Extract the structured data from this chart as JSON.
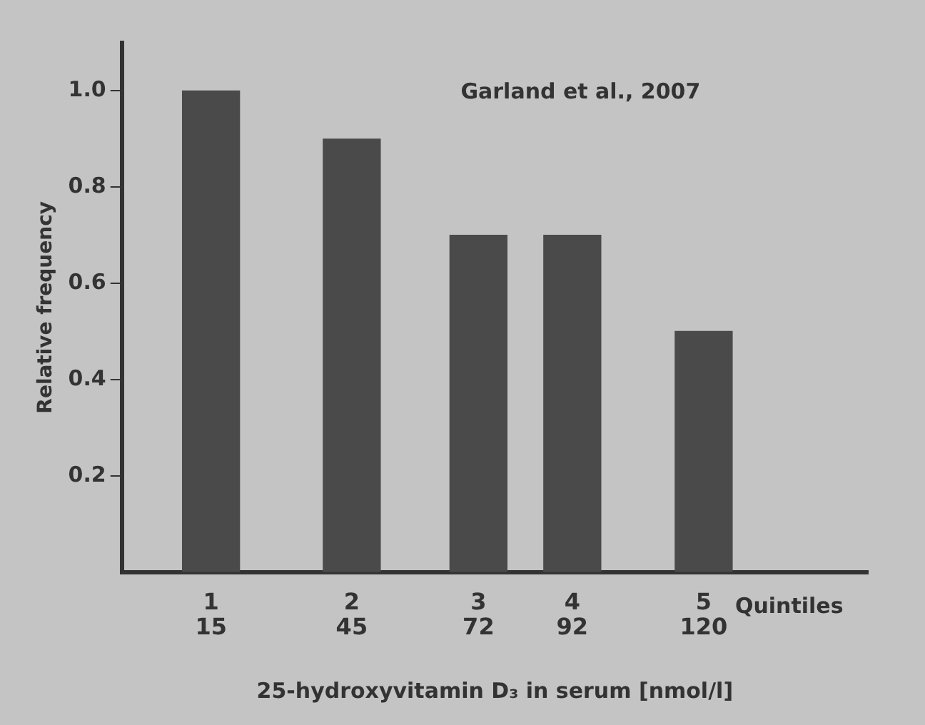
{
  "chart_data": {
    "type": "bar",
    "xlabel": "25-hydroxyvitamin D₃ in serum [nmol/l]",
    "ylabel": "Relative frequency",
    "annotations": [
      "Garland et al., 2007",
      "Quintiles",
      "1",
      "2",
      "3",
      "4",
      "5"
    ],
    "x": [
      15,
      45,
      72,
      92,
      120
    ],
    "values": [
      1.0,
      0.9,
      0.7,
      0.7,
      0.5
    ],
    "color": "#4a4a4a",
    "xlim": [
      -4,
      155
    ],
    "xticks": [
      15,
      45,
      72,
      92,
      120
    ],
    "ylim": [
      0,
      1.1
    ],
    "yticks": [
      {
        "value": 0.2,
        "label": "0.2"
      },
      {
        "value": 0.4,
        "label": "0.4"
      },
      {
        "value": 0.6,
        "label": "0.6"
      },
      {
        "value": 0.8,
        "label": "0.8"
      },
      {
        "value": 1.0,
        "label": "1.0"
      }
    ],
    "grid": false,
    "legend": false
  }
}
